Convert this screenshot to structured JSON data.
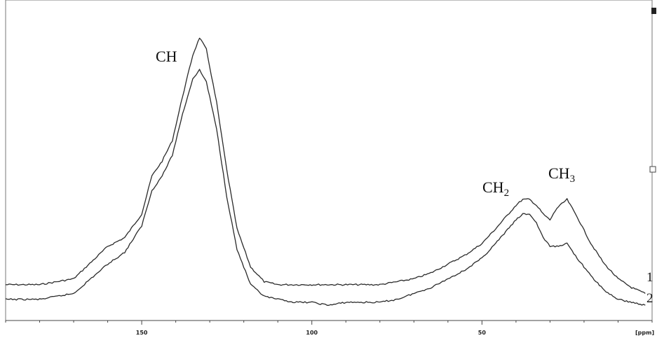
{
  "chart_data": {
    "type": "line",
    "title": "",
    "xlabel": "[ppm]",
    "ylabel": "",
    "xlim": [
      190,
      0
    ],
    "x_direction": "reversed",
    "x_ticks": [
      150,
      100,
      50
    ],
    "x_tick_labels": [
      "150",
      "100",
      "50"
    ],
    "grid": false,
    "annotations": [
      {
        "text": "CH",
        "main": "CH",
        "subscript": "",
        "x": 145
      },
      {
        "text": "CH2",
        "main": "CH",
        "subscript": "2",
        "x": 44
      },
      {
        "text": "CH3",
        "main": "CH",
        "subscript": "3",
        "x": 25
      }
    ],
    "series": [
      {
        "label": "1",
        "x": [
          190,
          180,
          170,
          160,
          155,
          150,
          147,
          144,
          141,
          138,
          135,
          133,
          131,
          128,
          125,
          122,
          118,
          114,
          110,
          105,
          100,
          95,
          90,
          85,
          80,
          75,
          70,
          65,
          60,
          55,
          50,
          46,
          43,
          40,
          38,
          36,
          34,
          32,
          30,
          28,
          25,
          22,
          18,
          14,
          10,
          6,
          2
        ],
        "y": [
          0.06,
          0.06,
          0.08,
          0.19,
          0.22,
          0.3,
          0.43,
          0.48,
          0.55,
          0.7,
          0.84,
          0.9,
          0.86,
          0.68,
          0.45,
          0.25,
          0.12,
          0.07,
          0.06,
          0.06,
          0.06,
          0.06,
          0.06,
          0.06,
          0.06,
          0.07,
          0.08,
          0.1,
          0.13,
          0.16,
          0.2,
          0.25,
          0.29,
          0.33,
          0.35,
          0.35,
          0.33,
          0.3,
          0.28,
          0.32,
          0.35,
          0.29,
          0.2,
          0.13,
          0.08,
          0.05,
          0.03
        ]
      },
      {
        "label": "2",
        "x": [
          190,
          180,
          170,
          160,
          155,
          150,
          147,
          144,
          141,
          138,
          135,
          133,
          131,
          128,
          125,
          122,
          118,
          114,
          110,
          105,
          100,
          95,
          90,
          85,
          80,
          75,
          70,
          65,
          60,
          55,
          50,
          46,
          43,
          40,
          38,
          36,
          34,
          32,
          30,
          28,
          25,
          22,
          18,
          14,
          10,
          6,
          2
        ],
        "y": [
          0.01,
          0.01,
          0.03,
          0.13,
          0.17,
          0.26,
          0.38,
          0.43,
          0.5,
          0.64,
          0.76,
          0.79,
          0.75,
          0.59,
          0.36,
          0.18,
          0.06,
          0.02,
          0.01,
          0.0,
          0.0,
          -0.01,
          0.0,
          0.0,
          0.0,
          0.01,
          0.03,
          0.05,
          0.08,
          0.11,
          0.15,
          0.2,
          0.24,
          0.28,
          0.3,
          0.3,
          0.27,
          0.22,
          0.19,
          0.19,
          0.2,
          0.15,
          0.09,
          0.04,
          0.01,
          0.0,
          -0.01
        ]
      }
    ]
  }
}
